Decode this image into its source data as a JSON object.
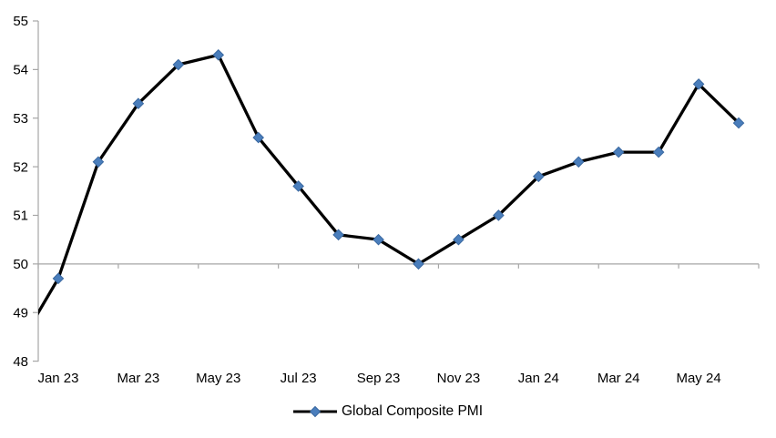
{
  "chart_data": {
    "type": "line",
    "title": "",
    "legend": [
      "Global Composite PMI"
    ],
    "legend_position": "bottom",
    "categories": [
      "Jan 23",
      "Feb 23",
      "Mar 23",
      "Apr 23",
      "May 23",
      "Jun 23",
      "Jul 23",
      "Aug 23",
      "Sep 23",
      "Oct 23",
      "Nov 23",
      "Dec 23",
      "Jan 24",
      "Feb 24",
      "Mar 24",
      "Apr 24",
      "May 24",
      "Jun 24"
    ],
    "series": [
      {
        "name": "Global Composite PMI",
        "values": [
          49.7,
          52.1,
          53.3,
          54.1,
          54.3,
          52.6,
          51.6,
          50.6,
          50.5,
          50.0,
          50.5,
          51.0,
          51.8,
          52.1,
          52.3,
          52.3,
          53.7,
          52.9
        ]
      }
    ],
    "leading_clipped_value": 48.3,
    "ylim": [
      48,
      55
    ],
    "ytick_step": 1,
    "ytick_labels": [
      "48",
      "49",
      "50",
      "51",
      "52",
      "53",
      "54",
      "55"
    ],
    "xtick_labels_visible": [
      "Jan 23",
      "Mar 23",
      "May 23",
      "Jul 23",
      "Sep 23",
      "Nov 23",
      "Jan 24",
      "Mar 24",
      "May 24"
    ],
    "xtick_label_every": 2,
    "x_axis_cross_value": 50,
    "grid": false,
    "marker_shape": "diamond",
    "colors": {
      "line": "#000000",
      "marker_fill": "#4a7ebc",
      "marker_edge": "#3a68a0",
      "axis": "#a6a6a6",
      "text": "#000000"
    }
  }
}
